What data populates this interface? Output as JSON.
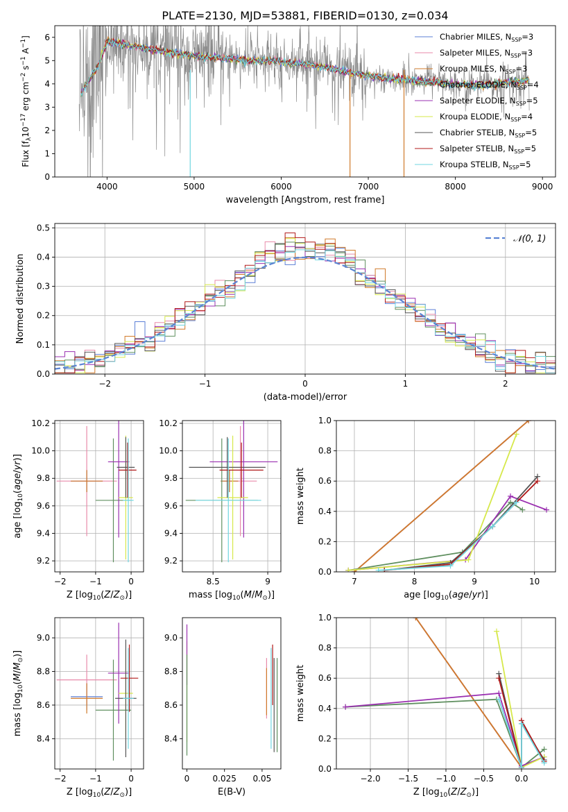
{
  "figure_title": "PLATE=2130, MJD=53881, FIBERID=0130, z=0.034",
  "models": [
    {
      "name": "Chabrier MILES",
      "nssp": "3",
      "color": "#5b7fd6"
    },
    {
      "name": "Salpeter MILES",
      "nssp": "3",
      "color": "#e88aaa"
    },
    {
      "name": "Kroupa MILES",
      "nssp": "3",
      "color": "#d07a2a"
    },
    {
      "name": "Chabrier ELODIE",
      "nssp": "4",
      "color": "#5f8f5f"
    },
    {
      "name": "Salpeter ELODIE",
      "nssp": "5",
      "color": "#9a2fb0"
    },
    {
      "name": "Kroupa ELODIE",
      "nssp": "4",
      "color": "#d6e84a"
    },
    {
      "name": "Chabrier STELIB",
      "nssp": "5",
      "color": "#555555"
    },
    {
      "name": "Salpeter STELIB",
      "nssp": "5",
      "color": "#b01818"
    },
    {
      "name": "Kroupa STELIB",
      "nssp": "5",
      "color": "#6fd6e0"
    }
  ],
  "chart_data": [
    {
      "id": "spectrum",
      "type": "line",
      "xlabel": "wavelength [Angstrom, rest frame]",
      "ylabel": "Flux [f_λ10^-17 erg cm^-2 s^-1 A^-1]",
      "xlim": [
        3400,
        9150
      ],
      "ylim": [
        0,
        6.5
      ],
      "xticks": [
        4000,
        5000,
        6000,
        7000,
        8000,
        9000
      ],
      "yticks": [
        0,
        1,
        2,
        3,
        4,
        5,
        6
      ],
      "data_color": "#888888",
      "data_range": [
        3680,
        8850
      ],
      "continuum_x": [
        3700,
        3900,
        4000,
        4200,
        4500,
        4800,
        5000,
        5300,
        5600,
        5900,
        6100,
        6300,
        6500,
        6700,
        6900,
        7100,
        7300,
        7500,
        7700,
        7900,
        8100,
        8300,
        8500,
        8700,
        8850
      ],
      "continuum_y": [
        3.6,
        4.8,
        5.8,
        5.7,
        5.5,
        5.3,
        5.2,
        5.1,
        5.0,
        5.0,
        4.9,
        4.85,
        4.7,
        4.55,
        4.4,
        4.3,
        4.2,
        4.15,
        4.1,
        4.0,
        3.95,
        3.95,
        4.0,
        4.1,
        4.15
      ],
      "legend_position": "upper right"
    },
    {
      "id": "residual_hist",
      "type": "step",
      "xlabel": "(data-model)/error",
      "ylabel": "Normed distribution",
      "xlim": [
        -2.5,
        2.5
      ],
      "ylim": [
        0,
        0.515
      ],
      "xticks": [
        -2,
        -1,
        0,
        1,
        2
      ],
      "yticks": [
        0.0,
        0.1,
        0.2,
        0.3,
        0.4,
        0.5
      ],
      "grid": true,
      "bin_width": 0.1,
      "reference_label": "𝒩(0, 1)",
      "reference_color": "#5b84d4",
      "legend_position": "upper right"
    },
    {
      "id": "age_vs_Z",
      "type": "scatter_errorbar",
      "xlabel": "Z [log10(Z/Z⊙)]",
      "ylabel": "age  [log10(age/yr)]",
      "xlim": [
        -2.15,
        0.35
      ],
      "ylim": [
        9.12,
        10.22
      ],
      "xticks": [
        -2,
        -1,
        0
      ],
      "yticks": [
        9.2,
        9.4,
        9.6,
        9.8,
        10.0,
        10.2
      ],
      "grid": true,
      "points": [
        {
          "x": -1.25,
          "y": 9.78,
          "xerr": 0.45,
          "yerr": 0.08,
          "model": 0
        },
        {
          "x": -1.25,
          "y": 9.78,
          "xerr": 0.85,
          "yerr": 0.4,
          "model": 1
        },
        {
          "x": -1.25,
          "y": 9.78,
          "xerr": 0.45,
          "yerr": 0.08,
          "model": 2
        },
        {
          "x": -0.5,
          "y": 9.64,
          "xerr": 0.5,
          "yerr": 0.45,
          "model": 3
        },
        {
          "x": -0.35,
          "y": 9.92,
          "xerr": 0.3,
          "yerr": 0.55,
          "model": 4
        },
        {
          "x": -0.15,
          "y": 9.66,
          "xerr": 0.2,
          "yerr": 0.45,
          "model": 5
        },
        {
          "x": -0.15,
          "y": 9.88,
          "xerr": 0.25,
          "yerr": 0.22,
          "model": 6
        },
        {
          "x": -0.1,
          "y": 9.86,
          "xerr": 0.25,
          "yerr": 0.2,
          "model": 7
        },
        {
          "x": -0.08,
          "y": 9.64,
          "xerr": 0.15,
          "yerr": 0.45,
          "model": 8
        }
      ]
    },
    {
      "id": "age_vs_mass",
      "type": "scatter_errorbar",
      "xlabel": "mass [log10(M/M⊙)]",
      "ylabel": "",
      "xlim": [
        8.22,
        9.12
      ],
      "ylim": [
        9.12,
        10.22
      ],
      "xticks": [
        8.5,
        9.0
      ],
      "yticks": [
        9.2,
        9.4,
        9.6,
        9.8,
        10.0,
        10.2
      ],
      "grid": true,
      "points": [
        {
          "x": 8.65,
          "y": 9.78,
          "xerr": 0.08,
          "yerr": 0.08,
          "model": 0
        },
        {
          "x": 8.75,
          "y": 9.78,
          "xerr": 0.15,
          "yerr": 0.4,
          "model": 1
        },
        {
          "x": 8.65,
          "y": 9.78,
          "xerr": 0.08,
          "yerr": 0.08,
          "model": 2
        },
        {
          "x": 8.58,
          "y": 9.64,
          "xerr": 0.33,
          "yerr": 0.45,
          "model": 3
        },
        {
          "x": 8.78,
          "y": 9.92,
          "xerr": 0.31,
          "yerr": 0.55,
          "model": 4
        },
        {
          "x": 8.68,
          "y": 9.66,
          "xerr": 0.14,
          "yerr": 0.45,
          "model": 5
        },
        {
          "x": 8.63,
          "y": 9.88,
          "xerr": 0.35,
          "yerr": 0.22,
          "model": 6
        },
        {
          "x": 8.76,
          "y": 9.86,
          "xerr": 0.2,
          "yerr": 0.2,
          "model": 7
        },
        {
          "x": 8.64,
          "y": 9.64,
          "xerr": 0.3,
          "yerr": 0.45,
          "model": 8
        }
      ]
    },
    {
      "id": "weight_vs_age",
      "type": "line_markers",
      "xlabel": "age  [log10(age/yr)]",
      "ylabel": "mass weight",
      "xlim": [
        6.7,
        10.35
      ],
      "ylim": [
        0,
        1.0
      ],
      "xticks": [
        7,
        8,
        9,
        10
      ],
      "yticks": [
        0.0,
        0.2,
        0.4,
        0.6,
        0.8,
        1.0
      ],
      "grid": true,
      "series": [
        {
          "model": 0,
          "x": [
            7.0,
            9.9
          ],
          "y": [
            0.0,
            1.0
          ]
        },
        {
          "model": 1,
          "x": [
            7.0,
            9.9
          ],
          "y": [
            0.0,
            1.0
          ]
        },
        {
          "model": 2,
          "x": [
            7.0,
            9.9
          ],
          "y": [
            0.0,
            1.0
          ]
        },
        {
          "model": 3,
          "x": [
            6.9,
            8.8,
            9.6,
            9.8
          ],
          "y": [
            0.01,
            0.13,
            0.46,
            0.41
          ]
        },
        {
          "model": 4,
          "x": [
            6.9,
            8.85,
            9.6,
            10.2
          ],
          "y": [
            0.01,
            0.08,
            0.5,
            0.41
          ]
        },
        {
          "model": 5,
          "x": [
            6.9,
            8.9,
            9.7
          ],
          "y": [
            0.01,
            0.08,
            0.91
          ]
        },
        {
          "model": 6,
          "x": [
            7.5,
            8.6,
            9.3,
            10.05
          ],
          "y": [
            0.01,
            0.06,
            0.3,
            0.63
          ]
        },
        {
          "model": 7,
          "x": [
            7.5,
            8.6,
            9.3,
            10.05
          ],
          "y": [
            0.01,
            0.05,
            0.3,
            0.6
          ]
        },
        {
          "model": 8,
          "x": [
            7.4,
            8.6,
            9.3,
            9.7
          ],
          "y": [
            0.01,
            0.04,
            0.3,
            0.46
          ]
        }
      ]
    },
    {
      "id": "mass_vs_Z",
      "type": "scatter_errorbar",
      "xlabel": "Z [log10(Z/Z⊙)]",
      "ylabel": "mass [log10(M/M⊙)]",
      "xlim": [
        -2.15,
        0.35
      ],
      "ylim": [
        8.22,
        9.12
      ],
      "xticks": [
        -2,
        -1,
        0
      ],
      "yticks": [
        8.4,
        8.6,
        8.8,
        9.0
      ],
      "grid": true,
      "points": [
        {
          "x": -1.25,
          "y": 8.65,
          "xerr": 0.45,
          "yerr": 0.08,
          "model": 0
        },
        {
          "x": -1.25,
          "y": 8.75,
          "xerr": 0.85,
          "yerr": 0.15,
          "model": 1
        },
        {
          "x": -1.25,
          "y": 8.64,
          "xerr": 0.45,
          "yerr": 0.09,
          "model": 2
        },
        {
          "x": -0.5,
          "y": 8.57,
          "xerr": 0.5,
          "yerr": 0.3,
          "model": 3
        },
        {
          "x": -0.35,
          "y": 8.79,
          "xerr": 0.3,
          "yerr": 0.3,
          "model": 4
        },
        {
          "x": -0.15,
          "y": 8.67,
          "xerr": 0.2,
          "yerr": 0.26,
          "model": 5
        },
        {
          "x": -0.15,
          "y": 8.64,
          "xerr": 0.3,
          "yerr": 0.35,
          "model": 6
        },
        {
          "x": -0.05,
          "y": 8.76,
          "xerr": 0.25,
          "yerr": 0.2,
          "model": 7
        },
        {
          "x": -0.08,
          "y": 8.64,
          "xerr": 0.15,
          "yerr": 0.3,
          "model": 8
        }
      ]
    },
    {
      "id": "mass_vs_ebv",
      "type": "scatter_errorbar",
      "xlabel": "E(B-V)",
      "ylabel": "",
      "xlim": [
        -0.003,
        0.0625
      ],
      "ylim": [
        8.22,
        9.12
      ],
      "xticks": [
        0.0,
        0.025,
        0.05
      ],
      "yticks": [
        8.4,
        8.6,
        8.8,
        9.0
      ],
      "grid": false,
      "points": [
        {
          "x": 0.0,
          "y": 8.68,
          "xerr": 0,
          "yerr": 0.3,
          "model": 5
        },
        {
          "x": 0.0,
          "y": 8.9,
          "xerr": 0,
          "yerr": 0.18,
          "model": 4
        },
        {
          "x": 0.0,
          "y": 8.6,
          "xerr": 0,
          "yerr": 0.3,
          "model": 3
        },
        {
          "x": 0.053,
          "y": 8.7,
          "xerr": 0,
          "yerr": 0.18,
          "model": 1
        },
        {
          "x": 0.053,
          "y": 8.68,
          "xerr": 0,
          "yerr": 0.14,
          "model": 2
        },
        {
          "x": 0.056,
          "y": 8.64,
          "xerr": 0,
          "yerr": 0.3,
          "model": 8
        },
        {
          "x": 0.057,
          "y": 8.78,
          "xerr": 0,
          "yerr": 0.18,
          "model": 7
        },
        {
          "x": 0.058,
          "y": 8.6,
          "xerr": 0,
          "yerr": 0.28,
          "model": 6
        },
        {
          "x": 0.06,
          "y": 8.6,
          "xerr": 0,
          "yerr": 0.28,
          "model": 3
        }
      ]
    },
    {
      "id": "weight_vs_Z",
      "type": "line_markers",
      "xlabel": "Z [log10(Z/Z⊙)]",
      "ylabel": "mass weight",
      "xlim": [
        -2.45,
        0.45
      ],
      "ylim": [
        0,
        1.0
      ],
      "xticks": [
        -2.0,
        -1.5,
        -1.0,
        -0.5,
        0.0
      ],
      "yticks": [
        0.0,
        0.2,
        0.4,
        0.6,
        0.8,
        1.0
      ],
      "grid": true,
      "series": [
        {
          "model": 0,
          "x": [
            -1.4,
            0.0
          ],
          "y": [
            1.0,
            0.01
          ]
        },
        {
          "model": 1,
          "x": [
            -1.4,
            0.0
          ],
          "y": [
            1.0,
            0.01
          ]
        },
        {
          "model": 2,
          "x": [
            -1.4,
            0.0
          ],
          "y": [
            1.0,
            0.01
          ]
        },
        {
          "model": 3,
          "x": [
            -2.33,
            -0.33,
            0.0,
            0.3
          ],
          "y": [
            0.41,
            0.46,
            0.01,
            0.13
          ]
        },
        {
          "model": 4,
          "x": [
            -2.33,
            -0.3,
            0.0,
            0.3
          ],
          "y": [
            0.41,
            0.5,
            0.02,
            0.08
          ]
        },
        {
          "model": 5,
          "x": [
            -0.33,
            0.0,
            0.3
          ],
          "y": [
            0.91,
            0.01,
            0.08
          ]
        },
        {
          "model": 6,
          "x": [
            -0.3,
            0.0,
            0.0,
            0.3
          ],
          "y": [
            0.63,
            0.01,
            0.3,
            0.06
          ]
        },
        {
          "model": 7,
          "x": [
            -0.3,
            0.0,
            0.0,
            0.3
          ],
          "y": [
            0.6,
            0.01,
            0.32,
            0.05
          ]
        },
        {
          "model": 8,
          "x": [
            -0.3,
            0.0,
            0.0,
            0.3
          ],
          "y": [
            0.46,
            0.01,
            0.3,
            0.04
          ]
        }
      ]
    }
  ]
}
